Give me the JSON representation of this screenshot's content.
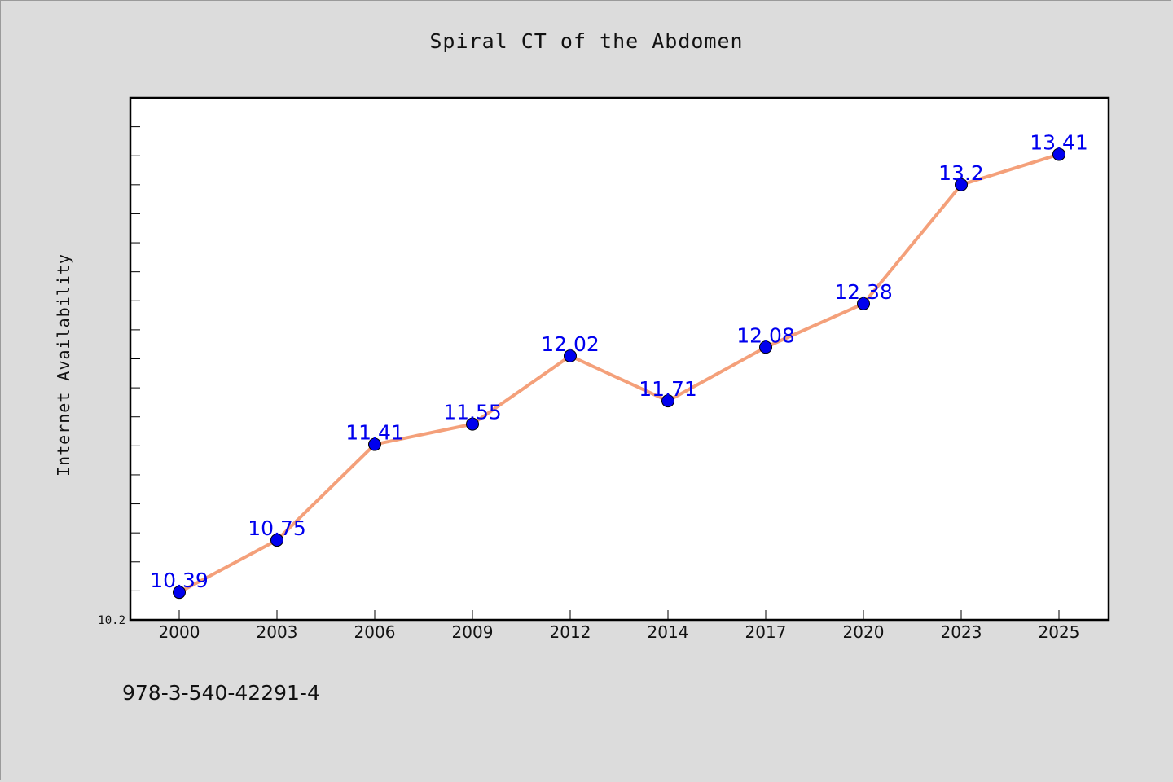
{
  "chart_data": {
    "type": "line",
    "title": "Spiral CT of the Abdomen",
    "xlabel": "",
    "ylabel": "Internet Availability",
    "categories": [
      "2000",
      "2003",
      "2006",
      "2009",
      "2012",
      "2014",
      "2017",
      "2020",
      "2023",
      "2025"
    ],
    "series": [
      {
        "values": [
          10.39,
          10.75,
          11.41,
          11.55,
          12.02,
          11.71,
          12.08,
          12.38,
          13.2,
          13.41
        ],
        "line_color": "#f4a07a",
        "marker_color": "#0000ee"
      }
    ],
    "ylim": [
      10.2,
      13.8
    ],
    "ytick_labels": [
      "10.2"
    ],
    "data_labels": true,
    "grid": false,
    "legend": "none"
  },
  "footnote": "978-3-540-42291-4",
  "colors": {
    "background": "#dcdcdc",
    "plot_background": "#ffffff",
    "label_color": "#0000ee"
  }
}
